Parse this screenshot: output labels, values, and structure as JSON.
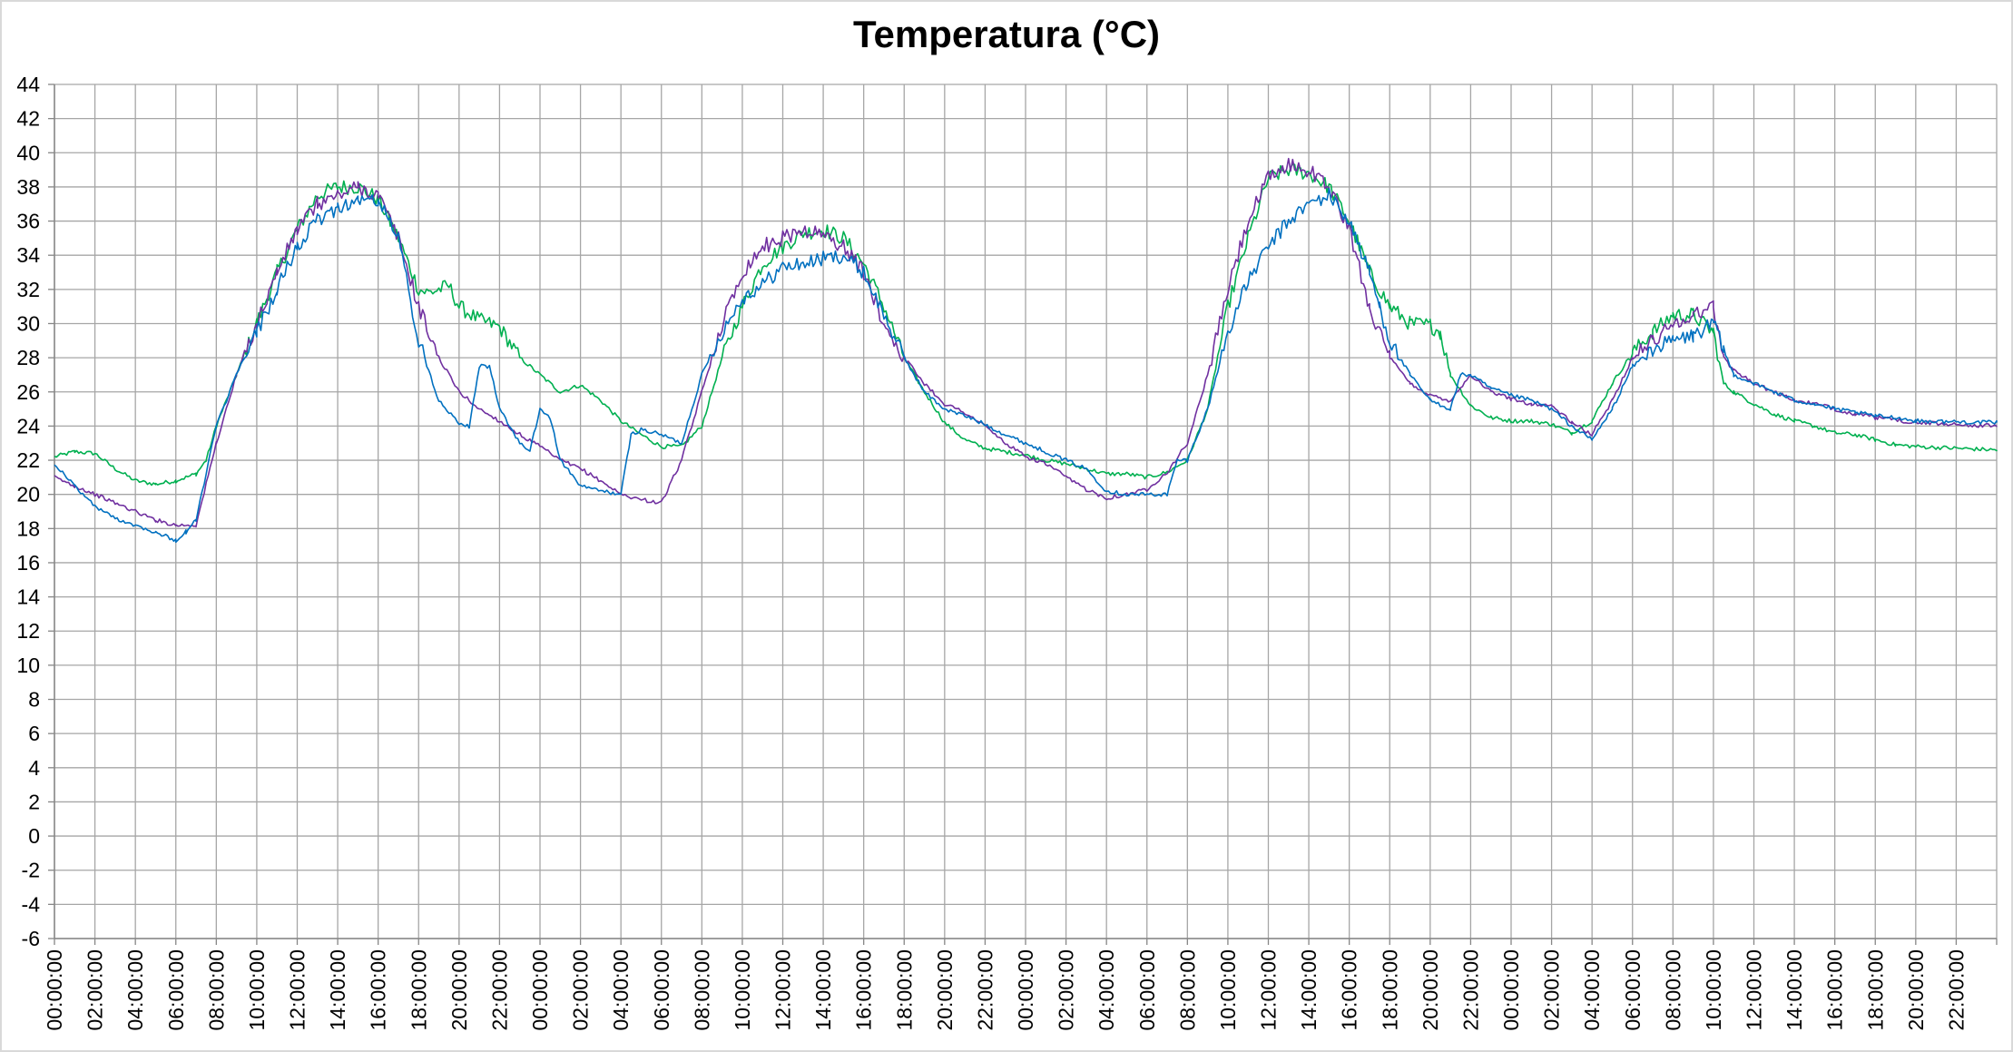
{
  "chart_data": {
    "type": "line",
    "title": "Temperatura (°C)",
    "xlabel": "",
    "ylabel": "",
    "ylim": [
      -6,
      44
    ],
    "y_ticks": [
      -6,
      -4,
      -2,
      0,
      2,
      4,
      6,
      8,
      10,
      12,
      14,
      16,
      18,
      20,
      22,
      24,
      26,
      28,
      30,
      32,
      34,
      36,
      38,
      40,
      42,
      44
    ],
    "x_range_hours": [
      0,
      96
    ],
    "x_tick_labels": [
      "00:00:00",
      "02:00:00",
      "04:00:00",
      "06:00:00",
      "08:00:00",
      "10:00:00",
      "12:00:00",
      "14:00:00",
      "16:00:00",
      "18:00:00",
      "20:00:00",
      "22:00:00",
      "00:00:00",
      "02:00:00",
      "04:00:00",
      "06:00:00",
      "08:00:00",
      "10:00:00",
      "12:00:00",
      "14:00:00",
      "16:00:00",
      "18:00:00",
      "20:00:00",
      "22:00:00",
      "00:00:00",
      "02:00:00",
      "04:00:00",
      "06:00:00",
      "08:00:00",
      "10:00:00",
      "12:00:00",
      "14:00:00",
      "16:00:00",
      "18:00:00",
      "20:00:00",
      "22:00:00",
      "00:00:00",
      "02:00:00",
      "04:00:00",
      "06:00:00",
      "08:00:00",
      "10:00:00",
      "12:00:00",
      "14:00:00",
      "16:00:00",
      "18:00:00",
      "20:00:00",
      "22:00:00"
    ],
    "grid": true,
    "legend": "none",
    "series": [
      {
        "color": "#00b050",
        "points": [
          [
            0,
            22.2
          ],
          [
            1,
            22.5
          ],
          [
            2,
            22.4
          ],
          [
            3,
            21.5
          ],
          [
            4,
            20.8
          ],
          [
            5,
            20.6
          ],
          [
            6,
            20.8
          ],
          [
            7,
            21.2
          ],
          [
            7.5,
            22
          ],
          [
            8,
            24
          ],
          [
            9,
            27
          ],
          [
            10,
            30
          ],
          [
            11,
            33
          ],
          [
            12,
            35.5
          ],
          [
            13,
            37.5
          ],
          [
            14,
            38
          ],
          [
            15,
            38
          ],
          [
            16,
            37.3
          ],
          [
            17,
            35
          ],
          [
            18,
            32
          ],
          [
            18.5,
            31.8
          ],
          [
            19,
            32
          ],
          [
            19.5,
            32.2
          ],
          [
            20,
            31
          ],
          [
            21,
            30.2
          ],
          [
            22,
            29.8
          ],
          [
            23,
            28
          ],
          [
            24,
            27
          ],
          [
            25,
            26
          ],
          [
            26,
            26.4
          ],
          [
            27,
            25.5
          ],
          [
            28,
            24.3
          ],
          [
            29,
            23.5
          ],
          [
            30,
            22.8
          ],
          [
            31,
            22.8
          ],
          [
            32,
            24
          ],
          [
            33,
            28
          ],
          [
            34,
            31
          ],
          [
            35,
            33.5
          ],
          [
            36,
            34.5
          ],
          [
            37,
            35.3
          ],
          [
            38,
            35.5
          ],
          [
            39,
            35
          ],
          [
            40,
            33.5
          ],
          [
            41,
            31
          ],
          [
            42,
            28
          ],
          [
            43,
            26
          ],
          [
            44,
            24.2
          ],
          [
            45,
            23.2
          ],
          [
            46,
            22.7
          ],
          [
            47,
            22.5
          ],
          [
            48,
            22.3
          ],
          [
            49,
            22
          ],
          [
            50,
            21.8
          ],
          [
            51,
            21.5
          ],
          [
            52,
            21.2
          ],
          [
            53,
            21.2
          ],
          [
            54,
            21
          ],
          [
            55,
            21.3
          ],
          [
            56,
            22
          ],
          [
            57,
            25
          ],
          [
            58,
            31
          ],
          [
            59,
            35
          ],
          [
            60,
            38.5
          ],
          [
            61,
            39
          ],
          [
            62,
            38.8
          ],
          [
            63,
            38
          ],
          [
            64,
            36
          ],
          [
            65,
            33
          ],
          [
            66,
            31
          ],
          [
            67,
            30
          ],
          [
            68,
            29.9
          ],
          [
            68.5,
            29.5
          ],
          [
            69,
            27
          ],
          [
            70,
            25.2
          ],
          [
            71,
            24.5
          ],
          [
            72,
            24.3
          ],
          [
            73,
            24.3
          ],
          [
            74,
            24.1
          ],
          [
            75,
            23.6
          ],
          [
            76,
            24.3
          ],
          [
            77,
            26.5
          ],
          [
            78,
            28.3
          ],
          [
            79,
            29.5
          ],
          [
            80,
            30.5
          ],
          [
            81,
            30.5
          ],
          [
            82,
            29.5
          ],
          [
            82.5,
            26.5
          ],
          [
            83,
            26
          ],
          [
            84,
            25.3
          ],
          [
            85,
            24.7
          ],
          [
            86,
            24.3
          ],
          [
            87,
            24
          ],
          [
            88,
            23.6
          ],
          [
            89,
            23.5
          ],
          [
            90,
            23.2
          ],
          [
            91,
            22.9
          ],
          [
            92,
            22.8
          ],
          [
            96,
            22.6
          ]
        ]
      },
      {
        "color": "#7030a0",
        "points": [
          [
            0,
            21
          ],
          [
            1,
            20.5
          ],
          [
            2,
            20
          ],
          [
            3,
            19.5
          ],
          [
            4,
            19
          ],
          [
            5,
            18.5
          ],
          [
            6,
            18.2
          ],
          [
            7,
            18.2
          ],
          [
            8,
            23
          ],
          [
            9,
            27
          ],
          [
            10,
            30
          ],
          [
            11,
            33
          ],
          [
            12,
            35.5
          ],
          [
            13,
            37
          ],
          [
            14,
            37.5
          ],
          [
            15,
            38
          ],
          [
            16,
            37.5
          ],
          [
            17,
            35
          ],
          [
            18,
            31
          ],
          [
            19,
            28
          ],
          [
            20,
            26
          ],
          [
            21,
            25
          ],
          [
            22,
            24.3
          ],
          [
            23,
            23.5
          ],
          [
            24,
            22.8
          ],
          [
            25,
            22
          ],
          [
            26,
            21.5
          ],
          [
            27,
            20.8
          ],
          [
            28,
            20
          ],
          [
            29,
            19.7
          ],
          [
            30,
            19.5
          ],
          [
            31,
            22
          ],
          [
            32,
            26
          ],
          [
            33,
            30
          ],
          [
            34,
            33
          ],
          [
            35,
            34.5
          ],
          [
            36,
            35
          ],
          [
            37,
            35.5
          ],
          [
            38,
            35.2
          ],
          [
            39,
            34.5
          ],
          [
            40,
            33
          ],
          [
            41,
            30
          ],
          [
            42,
            28
          ],
          [
            43,
            26.5
          ],
          [
            44,
            25.3
          ],
          [
            45,
            24.8
          ],
          [
            46,
            24
          ],
          [
            47,
            23
          ],
          [
            48,
            22.2
          ],
          [
            49,
            21.8
          ],
          [
            50,
            21
          ],
          [
            51,
            20.3
          ],
          [
            52,
            19.8
          ],
          [
            53,
            20
          ],
          [
            54,
            20.3
          ],
          [
            55,
            21.3
          ],
          [
            56,
            23
          ],
          [
            57,
            27
          ],
          [
            58,
            32
          ],
          [
            59,
            36
          ],
          [
            60,
            38.5
          ],
          [
            61,
            39.3
          ],
          [
            62,
            39
          ],
          [
            63,
            38
          ],
          [
            64,
            35.5
          ],
          [
            65,
            31
          ],
          [
            66,
            28
          ],
          [
            67,
            26.5
          ],
          [
            68,
            25.8
          ],
          [
            69,
            25.5
          ],
          [
            70,
            27
          ],
          [
            71,
            26
          ],
          [
            72,
            25.6
          ],
          [
            73,
            25.3
          ],
          [
            74,
            25.2
          ],
          [
            75,
            24.2
          ],
          [
            76,
            23.5
          ],
          [
            77,
            25.5
          ],
          [
            78,
            28
          ],
          [
            79,
            29
          ],
          [
            80,
            30
          ],
          [
            81,
            30.5
          ],
          [
            82,
            31
          ],
          [
            82.5,
            28
          ],
          [
            83,
            27.3
          ],
          [
            84,
            26.5
          ],
          [
            85,
            26
          ],
          [
            86,
            25.5
          ],
          [
            87,
            25.3
          ],
          [
            88,
            25
          ],
          [
            89,
            24.7
          ],
          [
            90,
            24.5
          ],
          [
            92,
            24.2
          ],
          [
            96,
            24
          ]
        ]
      },
      {
        "color": "#0070c0",
        "points": [
          [
            0,
            21.8
          ],
          [
            1,
            20.5
          ],
          [
            2,
            19.3
          ],
          [
            3,
            18.6
          ],
          [
            4,
            18.2
          ],
          [
            5,
            17.8
          ],
          [
            6,
            17.3
          ],
          [
            6.5,
            17.8
          ],
          [
            7,
            18.5
          ],
          [
            8,
            24
          ],
          [
            9,
            27
          ],
          [
            10,
            29.5
          ],
          [
            11,
            32
          ],
          [
            12,
            34.5
          ],
          [
            13,
            36
          ],
          [
            14,
            36.8
          ],
          [
            15,
            37.2
          ],
          [
            16,
            37.2
          ],
          [
            17,
            35
          ],
          [
            18,
            29
          ],
          [
            19,
            25.5
          ],
          [
            20,
            24.2
          ],
          [
            20.5,
            24
          ],
          [
            21,
            27.5
          ],
          [
            21.5,
            27.5
          ],
          [
            22,
            25
          ],
          [
            23,
            23
          ],
          [
            23.5,
            22.5
          ],
          [
            24,
            25
          ],
          [
            24.5,
            24.5
          ],
          [
            25,
            22
          ],
          [
            26,
            20.5
          ],
          [
            27,
            20.2
          ],
          [
            28,
            20
          ],
          [
            28.5,
            23.5
          ],
          [
            29,
            23.8
          ],
          [
            30,
            23.5
          ],
          [
            31,
            23
          ],
          [
            32,
            27
          ],
          [
            33,
            29.5
          ],
          [
            34,
            31.5
          ],
          [
            35,
            32.3
          ],
          [
            36,
            33.3
          ],
          [
            37,
            33.5
          ],
          [
            38,
            33.8
          ],
          [
            39,
            34
          ],
          [
            40,
            33
          ],
          [
            41,
            30.5
          ],
          [
            42,
            28
          ],
          [
            43,
            26
          ],
          [
            44,
            25
          ],
          [
            45,
            24.6
          ],
          [
            46,
            24.1
          ],
          [
            47,
            23.5
          ],
          [
            48,
            23
          ],
          [
            49,
            22.5
          ],
          [
            50,
            22
          ],
          [
            51,
            21.5
          ],
          [
            52,
            20.2
          ],
          [
            53,
            20
          ],
          [
            54,
            20
          ],
          [
            55,
            20
          ],
          [
            55.5,
            22
          ],
          [
            56,
            22
          ],
          [
            57,
            25
          ],
          [
            58,
            29.5
          ],
          [
            59,
            32.5
          ],
          [
            60,
            34.5
          ],
          [
            61,
            36
          ],
          [
            62,
            37
          ],
          [
            63,
            37.5
          ],
          [
            64,
            36
          ],
          [
            65,
            33
          ],
          [
            65.5,
            31
          ],
          [
            66,
            29
          ],
          [
            67,
            27
          ],
          [
            68,
            25.5
          ],
          [
            69,
            25
          ],
          [
            69.5,
            27
          ],
          [
            70,
            27
          ],
          [
            71,
            26.2
          ],
          [
            72,
            25.8
          ],
          [
            73,
            25.5
          ],
          [
            74,
            25
          ],
          [
            75,
            24
          ],
          [
            76,
            23.2
          ],
          [
            77,
            25
          ],
          [
            78,
            27.5
          ],
          [
            79,
            28.5
          ],
          [
            80,
            29
          ],
          [
            81,
            29.3
          ],
          [
            82,
            30
          ],
          [
            82.5,
            28.5
          ],
          [
            83,
            27
          ],
          [
            84,
            26.5
          ],
          [
            85,
            26
          ],
          [
            86,
            25.5
          ],
          [
            87,
            25.3
          ],
          [
            88,
            25
          ],
          [
            89,
            24.8
          ],
          [
            90,
            24.6
          ],
          [
            91,
            24.5
          ],
          [
            92,
            24.3
          ],
          [
            96,
            24.2
          ]
        ]
      }
    ]
  }
}
